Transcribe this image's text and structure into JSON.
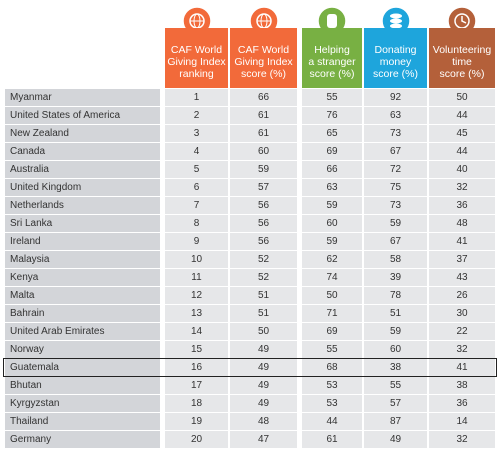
{
  "table": {
    "headers": [
      "CAF World\nGiving Index\nranking",
      "CAF World\nGiving Index\nscore (%)",
      "Helping\na stranger\nscore (%)",
      "Donating\nmoney\nscore (%)",
      "Volunteering\ntime\nscore (%)"
    ],
    "rows": [
      [
        "Myanmar",
        1,
        66,
        55,
        92,
        50
      ],
      [
        "United States of America",
        2,
        61,
        76,
        63,
        44
      ],
      [
        "New Zealand",
        3,
        61,
        65,
        73,
        45
      ],
      [
        "Canada",
        4,
        60,
        69,
        67,
        44
      ],
      [
        "Australia",
        5,
        59,
        66,
        72,
        40
      ],
      [
        "United Kingdom",
        6,
        57,
        63,
        75,
        32
      ],
      [
        "Netherlands",
        7,
        56,
        59,
        73,
        36
      ],
      [
        "Sri Lanka",
        8,
        56,
        60,
        59,
        48
      ],
      [
        "Ireland",
        9,
        56,
        59,
        67,
        41
      ],
      [
        "Malaysia",
        10,
        52,
        62,
        58,
        37
      ],
      [
        "Kenya",
        11,
        52,
        74,
        39,
        43
      ],
      [
        "Malta",
        12,
        51,
        50,
        78,
        26
      ],
      [
        "Bahrain",
        13,
        51,
        71,
        51,
        30
      ],
      [
        "United Arab Emirates",
        14,
        50,
        69,
        59,
        22
      ],
      [
        "Norway",
        15,
        49,
        55,
        60,
        32
      ],
      [
        "Guatemala",
        16,
        49,
        68,
        38,
        41
      ],
      [
        "Bhutan",
        17,
        49,
        53,
        55,
        38
      ],
      [
        "Kyrgyzstan",
        18,
        49,
        53,
        57,
        36
      ],
      [
        "Thailand",
        19,
        48,
        44,
        87,
        14
      ],
      [
        "Germany",
        20,
        47,
        61,
        49,
        32
      ]
    ]
  }
}
